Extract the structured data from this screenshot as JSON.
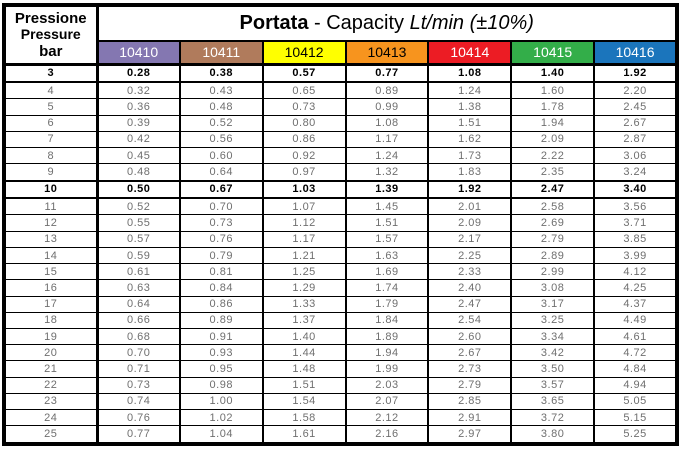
{
  "header": {
    "pressione": "Pressione",
    "pressure": "Pressure",
    "bar_label": "bar",
    "title": {
      "bold": "Portata",
      "regular": " - Capacity ",
      "italic": "Lt/min (±10%)"
    }
  },
  "columns": [
    {
      "code": "10410",
      "bg": "#8477B1",
      "fg": "#ffffff"
    },
    {
      "code": "10411",
      "bg": "#B07B5C",
      "fg": "#ffffff"
    },
    {
      "code": "10412",
      "bg": "#FFFF00",
      "fg": "#000000"
    },
    {
      "code": "10413",
      "bg": "#F7941E",
      "fg": "#000000"
    },
    {
      "code": "10414",
      "bg": "#EC1C24",
      "fg": "#ffffff"
    },
    {
      "code": "10415",
      "bg": "#33AE49",
      "fg": "#ffffff"
    },
    {
      "code": "10416",
      "bg": "#1B75BC",
      "fg": "#ffffff"
    }
  ],
  "rows": [
    {
      "bar": "3",
      "bold": true,
      "values": [
        "0.28",
        "0.38",
        "0.57",
        "0.77",
        "1.08",
        "1.40",
        "1.92"
      ]
    },
    {
      "bar": "4",
      "bold": false,
      "values": [
        "0.32",
        "0.43",
        "0.65",
        "0.89",
        "1.24",
        "1.60",
        "2.20"
      ]
    },
    {
      "bar": "5",
      "bold": false,
      "values": [
        "0.36",
        "0.48",
        "0.73",
        "0.99",
        "1.38",
        "1.78",
        "2.45"
      ]
    },
    {
      "bar": "6",
      "bold": false,
      "values": [
        "0.39",
        "0.52",
        "0.80",
        "1.08",
        "1.51",
        "1.94",
        "2.67"
      ]
    },
    {
      "bar": "7",
      "bold": false,
      "values": [
        "0.42",
        "0.56",
        "0.86",
        "1.17",
        "1.62",
        "2.09",
        "2.87"
      ]
    },
    {
      "bar": "8",
      "bold": false,
      "values": [
        "0.45",
        "0.60",
        "0.92",
        "1.24",
        "1.73",
        "2.22",
        "3.06"
      ]
    },
    {
      "bar": "9",
      "bold": false,
      "values": [
        "0.48",
        "0.64",
        "0.97",
        "1.32",
        "1.83",
        "2.35",
        "3.24"
      ]
    },
    {
      "bar": "10",
      "bold": true,
      "values": [
        "0.50",
        "0.67",
        "1.03",
        "1.39",
        "1.92",
        "2.47",
        "3.40"
      ]
    },
    {
      "bar": "11",
      "bold": false,
      "values": [
        "0.52",
        "0.70",
        "1.07",
        "1.45",
        "2.01",
        "2.58",
        "3.56"
      ]
    },
    {
      "bar": "12",
      "bold": false,
      "values": [
        "0.55",
        "0.73",
        "1.12",
        "1.51",
        "2.09",
        "2.69",
        "3.71"
      ]
    },
    {
      "bar": "13",
      "bold": false,
      "values": [
        "0.57",
        "0.76",
        "1.17",
        "1.57",
        "2.17",
        "2.79",
        "3.85"
      ]
    },
    {
      "bar": "14",
      "bold": false,
      "values": [
        "0.59",
        "0.79",
        "1.21",
        "1.63",
        "2.25",
        "2.89",
        "3.99"
      ]
    },
    {
      "bar": "15",
      "bold": false,
      "values": [
        "0.61",
        "0.81",
        "1.25",
        "1.69",
        "2.33",
        "2.99",
        "4.12"
      ]
    },
    {
      "bar": "16",
      "bold": false,
      "values": [
        "0.63",
        "0.84",
        "1.29",
        "1.74",
        "2.40",
        "3.08",
        "4.25"
      ]
    },
    {
      "bar": "17",
      "bold": false,
      "values": [
        "0.64",
        "0.86",
        "1.33",
        "1.79",
        "2.47",
        "3.17",
        "4.37"
      ]
    },
    {
      "bar": "18",
      "bold": false,
      "values": [
        "0.66",
        "0.89",
        "1.37",
        "1.84",
        "2.54",
        "3.25",
        "4.49"
      ]
    },
    {
      "bar": "19",
      "bold": false,
      "values": [
        "0.68",
        "0.91",
        "1.40",
        "1.89",
        "2.60",
        "3.34",
        "4.61"
      ]
    },
    {
      "bar": "20",
      "bold": false,
      "values": [
        "0.70",
        "0.93",
        "1.44",
        "1.94",
        "2.67",
        "3.42",
        "4.72"
      ]
    },
    {
      "bar": "21",
      "bold": false,
      "values": [
        "0.71",
        "0.95",
        "1.48",
        "1.99",
        "2.73",
        "3.50",
        "4.84"
      ]
    },
    {
      "bar": "22",
      "bold": false,
      "values": [
        "0.73",
        "0.98",
        "1.51",
        "2.03",
        "2.79",
        "3.57",
        "4.94"
      ]
    },
    {
      "bar": "23",
      "bold": false,
      "values": [
        "0.74",
        "1.00",
        "1.54",
        "2.07",
        "2.85",
        "3.65",
        "5.05"
      ]
    },
    {
      "bar": "24",
      "bold": false,
      "values": [
        "0.76",
        "1.02",
        "1.58",
        "2.12",
        "2.91",
        "3.72",
        "5.15"
      ]
    },
    {
      "bar": "25",
      "bold": false,
      "values": [
        "0.77",
        "1.04",
        "1.61",
        "2.16",
        "2.97",
        "3.80",
        "5.25"
      ]
    }
  ]
}
